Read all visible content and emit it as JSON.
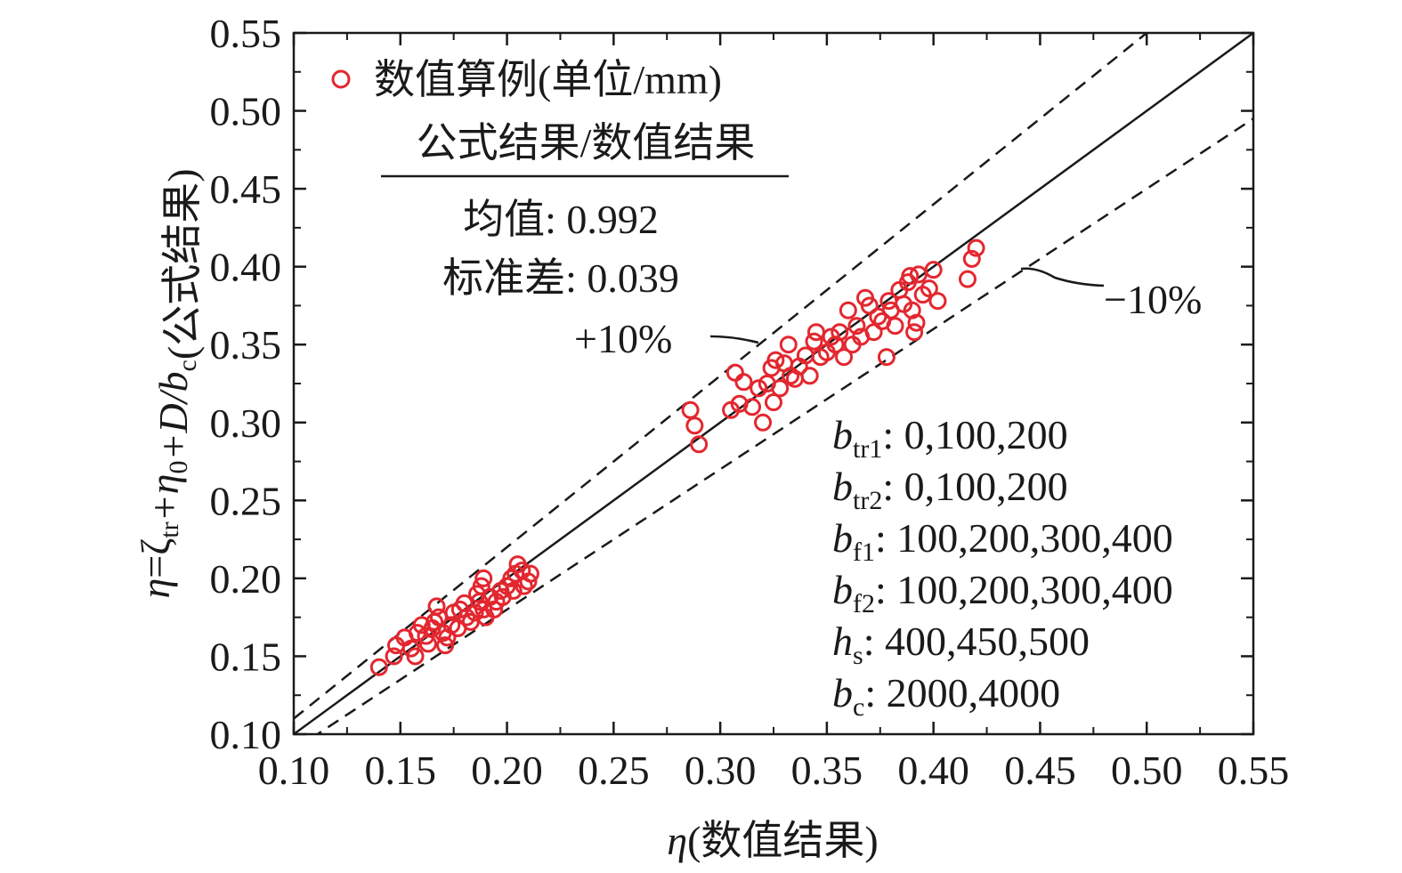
{
  "chart_data": {
    "type": "scatter",
    "xlabel": {
      "sym": "η",
      "rest": "(数值结果)"
    },
    "ylabel_parts": [
      {
        "t": "η",
        "i": true
      },
      {
        "t": "=ζ",
        "i": false
      },
      {
        "t": "tr",
        "sub": true
      },
      {
        "t": "+η",
        "i": true
      },
      {
        "t": "0",
        "sub": true
      },
      {
        "t": "+D/b",
        "i": true
      },
      {
        "t": "c",
        "sub": true
      },
      {
        "t": "(公式结果)",
        "i": false
      }
    ],
    "xlim": [
      0.1,
      0.55
    ],
    "ylim": [
      0.1,
      0.55
    ],
    "xticks": [
      "0.10",
      "0.15",
      "0.20",
      "0.25",
      "0.30",
      "0.35",
      "0.40",
      "0.45",
      "0.50",
      "0.55"
    ],
    "yticks": [
      "0.10",
      "0.15",
      "0.20",
      "0.25",
      "0.30",
      "0.35",
      "0.40",
      "0.45",
      "0.50",
      "0.55"
    ],
    "grid": false,
    "legend": {
      "position": "top-left",
      "label": "数值算例(单位/mm)",
      "marker": "open-circle",
      "color": "#e3272f"
    },
    "stats": {
      "heading": "公式结果/数值结果",
      "mean": "均值: 0.992",
      "std": "标准差: 0.039"
    },
    "reference_lines": [
      {
        "name": "y = x",
        "slope": 1.0,
        "style": "solid"
      },
      {
        "name": "+10%",
        "slope": 1.1,
        "style": "dashed",
        "label": "+10%"
      },
      {
        "name": "-10%",
        "slope": 0.9,
        "style": "dashed",
        "label": "−10%"
      }
    ],
    "params": [
      {
        "sym": "b",
        "sub": "tr1",
        "val": ": 0,100,200"
      },
      {
        "sym": "b",
        "sub": "tr2",
        "val": ": 0,100,200"
      },
      {
        "sym": "b",
        "sub": "f1",
        "val": ": 100,200,300,400"
      },
      {
        "sym": "b",
        "sub": "f2",
        "val": ": 100,200,300,400"
      },
      {
        "sym": "h",
        "sub": "s",
        "val": ": 400,450,500"
      },
      {
        "sym": "b",
        "sub": "c",
        "val": ": 2000,4000"
      }
    ],
    "series": [
      {
        "marker": "open-circle",
        "color": "#e3272f",
        "points": [
          [
            0.14,
            0.143
          ],
          [
            0.147,
            0.15
          ],
          [
            0.148,
            0.157
          ],
          [
            0.152,
            0.162
          ],
          [
            0.155,
            0.155
          ],
          [
            0.157,
            0.15
          ],
          [
            0.158,
            0.165
          ],
          [
            0.16,
            0.17
          ],
          [
            0.162,
            0.163
          ],
          [
            0.163,
            0.158
          ],
          [
            0.165,
            0.168
          ],
          [
            0.166,
            0.172
          ],
          [
            0.167,
            0.182
          ],
          [
            0.168,
            0.175
          ],
          [
            0.17,
            0.165
          ],
          [
            0.171,
            0.157
          ],
          [
            0.172,
            0.162
          ],
          [
            0.174,
            0.17
          ],
          [
            0.175,
            0.178
          ],
          [
            0.177,
            0.168
          ],
          [
            0.178,
            0.18
          ],
          [
            0.18,
            0.184
          ],
          [
            0.181,
            0.175
          ],
          [
            0.183,
            0.172
          ],
          [
            0.185,
            0.178
          ],
          [
            0.186,
            0.19
          ],
          [
            0.187,
            0.185
          ],
          [
            0.188,
            0.195
          ],
          [
            0.189,
            0.2
          ],
          [
            0.189,
            0.18
          ],
          [
            0.19,
            0.175
          ],
          [
            0.192,
            0.188
          ],
          [
            0.194,
            0.18
          ],
          [
            0.195,
            0.185
          ],
          [
            0.197,
            0.192
          ],
          [
            0.198,
            0.188
          ],
          [
            0.2,
            0.195
          ],
          [
            0.202,
            0.2
          ],
          [
            0.203,
            0.192
          ],
          [
            0.204,
            0.203
          ],
          [
            0.205,
            0.209
          ],
          [
            0.207,
            0.205
          ],
          [
            0.208,
            0.195
          ],
          [
            0.21,
            0.198
          ],
          [
            0.211,
            0.203
          ],
          [
            0.286,
            0.308
          ],
          [
            0.288,
            0.298
          ],
          [
            0.29,
            0.286
          ],
          [
            0.305,
            0.308
          ],
          [
            0.307,
            0.332
          ],
          [
            0.309,
            0.312
          ],
          [
            0.311,
            0.326
          ],
          [
            0.315,
            0.31
          ],
          [
            0.318,
            0.322
          ],
          [
            0.32,
            0.3
          ],
          [
            0.322,
            0.325
          ],
          [
            0.324,
            0.335
          ],
          [
            0.325,
            0.313
          ],
          [
            0.326,
            0.34
          ],
          [
            0.328,
            0.322
          ],
          [
            0.33,
            0.338
          ],
          [
            0.332,
            0.35
          ],
          [
            0.333,
            0.33
          ],
          [
            0.335,
            0.328
          ],
          [
            0.337,
            0.336
          ],
          [
            0.34,
            0.343
          ],
          [
            0.342,
            0.33
          ],
          [
            0.344,
            0.352
          ],
          [
            0.345,
            0.358
          ],
          [
            0.347,
            0.342
          ],
          [
            0.35,
            0.345
          ],
          [
            0.352,
            0.355
          ],
          [
            0.354,
            0.35
          ],
          [
            0.356,
            0.358
          ],
          [
            0.358,
            0.342
          ],
          [
            0.36,
            0.372
          ],
          [
            0.362,
            0.35
          ],
          [
            0.364,
            0.362
          ],
          [
            0.366,
            0.355
          ],
          [
            0.368,
            0.38
          ],
          [
            0.37,
            0.375
          ],
          [
            0.372,
            0.358
          ],
          [
            0.374,
            0.368
          ],
          [
            0.376,
            0.365
          ],
          [
            0.378,
            0.342
          ],
          [
            0.379,
            0.378
          ],
          [
            0.38,
            0.372
          ],
          [
            0.382,
            0.362
          ],
          [
            0.384,
            0.385
          ],
          [
            0.386,
            0.376
          ],
          [
            0.388,
            0.39
          ],
          [
            0.389,
            0.394
          ],
          [
            0.39,
            0.372
          ],
          [
            0.391,
            0.358
          ],
          [
            0.392,
            0.364
          ],
          [
            0.393,
            0.395
          ],
          [
            0.395,
            0.382
          ],
          [
            0.398,
            0.386
          ],
          [
            0.4,
            0.398
          ],
          [
            0.402,
            0.378
          ],
          [
            0.416,
            0.392
          ],
          [
            0.418,
            0.405
          ],
          [
            0.42,
            0.412
          ]
        ]
      }
    ]
  }
}
